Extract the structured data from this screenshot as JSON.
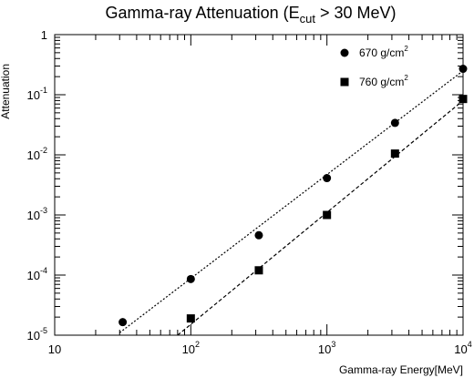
{
  "chart_data": {
    "type": "scatter",
    "title": {
      "main": "Gamma-ray Attenuation (E",
      "subscript": "cut",
      "rest": " > 30 MeV)"
    },
    "xlabel": "Gamma-ray Energy[MeV]",
    "ylabel": "Attenuation",
    "x_scale": "log",
    "y_scale": "log",
    "xlim": [
      10,
      10000
    ],
    "ylim": [
      1e-05,
      1
    ],
    "x_ticks": [
      {
        "value": 10,
        "base": "10",
        "exp": ""
      },
      {
        "value": 100,
        "base": "10",
        "exp": "2"
      },
      {
        "value": 1000,
        "base": "10",
        "exp": "3"
      },
      {
        "value": 10000,
        "base": "10",
        "exp": "4"
      }
    ],
    "y_ticks": [
      {
        "value": 1,
        "base": "1",
        "exp": ""
      },
      {
        "value": 0.1,
        "base": "10",
        "exp": "-1"
      },
      {
        "value": 0.01,
        "base": "10",
        "exp": "-2"
      },
      {
        "value": 0.001,
        "base": "10",
        "exp": "-3"
      },
      {
        "value": 0.0001,
        "base": "10",
        "exp": "-4"
      },
      {
        "value": 1e-05,
        "base": "10",
        "exp": "-5"
      }
    ],
    "legend_position": "top-right",
    "series": [
      {
        "name": "670 g/cm",
        "name_sup": "2",
        "marker": "circle",
        "line_style": "dotted",
        "x": [
          31.6,
          100,
          316,
          1000,
          3162,
          10000
        ],
        "y": [
          1.65e-05,
          8.6e-05,
          0.00046,
          0.0041,
          0.034,
          0.27
        ],
        "fit_x": [
          30,
          10000
        ],
        "fit_y": [
          1.1e-05,
          0.25
        ]
      },
      {
        "name": "760 g/cm",
        "name_sup": "2",
        "marker": "square",
        "line_style": "dashed",
        "x": [
          100,
          316,
          1000,
          3162,
          10000
        ],
        "y": [
          1.9e-05,
          0.00012,
          0.001,
          0.0105,
          0.085
        ],
        "fit_x": [
          80,
          10000
        ],
        "fit_y": [
          1e-05,
          0.08
        ]
      }
    ]
  }
}
